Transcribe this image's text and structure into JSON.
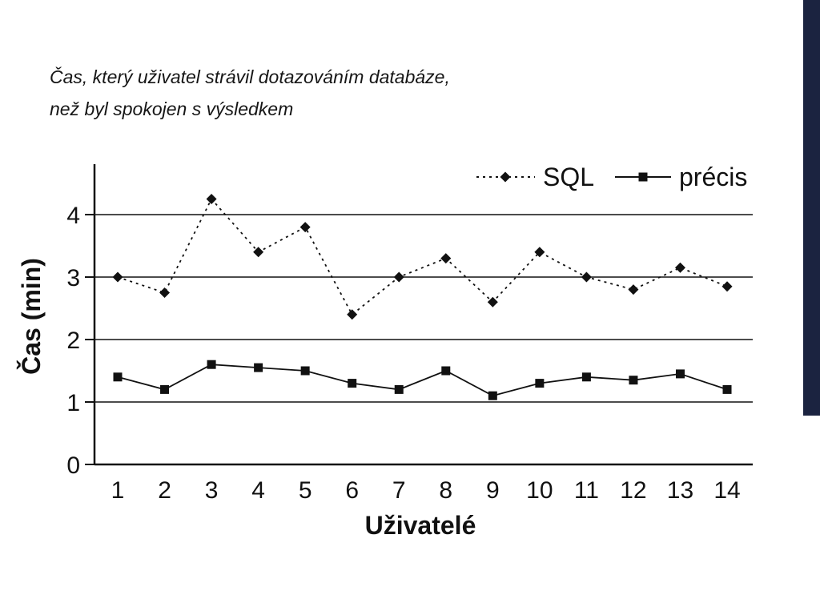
{
  "slide": {
    "title_line1": "Čas, který uživatel strávil dotazováním databáze,",
    "title_line2": "než byl spokojen s výsledkem"
  },
  "chart_data": {
    "type": "line",
    "title": "",
    "xlabel": "Uživatelé",
    "ylabel": "Čas (min)",
    "categories": [
      1,
      2,
      3,
      4,
      5,
      6,
      7,
      8,
      9,
      10,
      11,
      12,
      13,
      14
    ],
    "yticks": [
      0,
      1,
      2,
      3,
      4
    ],
    "ylim": [
      0,
      4.8
    ],
    "grid": "horizontal solid lines at 1, 2, 3, 4",
    "legend_position": "top-right",
    "series": [
      {
        "name": "SQL",
        "marker": "diamond",
        "line": "dotted",
        "values": [
          3.0,
          2.75,
          4.25,
          3.4,
          3.8,
          2.4,
          3.0,
          3.3,
          2.6,
          3.4,
          3.0,
          2.8,
          3.15,
          2.85
        ]
      },
      {
        "name": "précis",
        "marker": "square",
        "line": "solid",
        "values": [
          1.4,
          1.2,
          1.6,
          1.55,
          1.5,
          1.3,
          1.2,
          1.5,
          1.1,
          1.3,
          1.4,
          1.35,
          1.45,
          1.2
        ]
      }
    ]
  },
  "colors": {
    "accent_bar": "#1b2340",
    "series_color": "#111111"
  }
}
